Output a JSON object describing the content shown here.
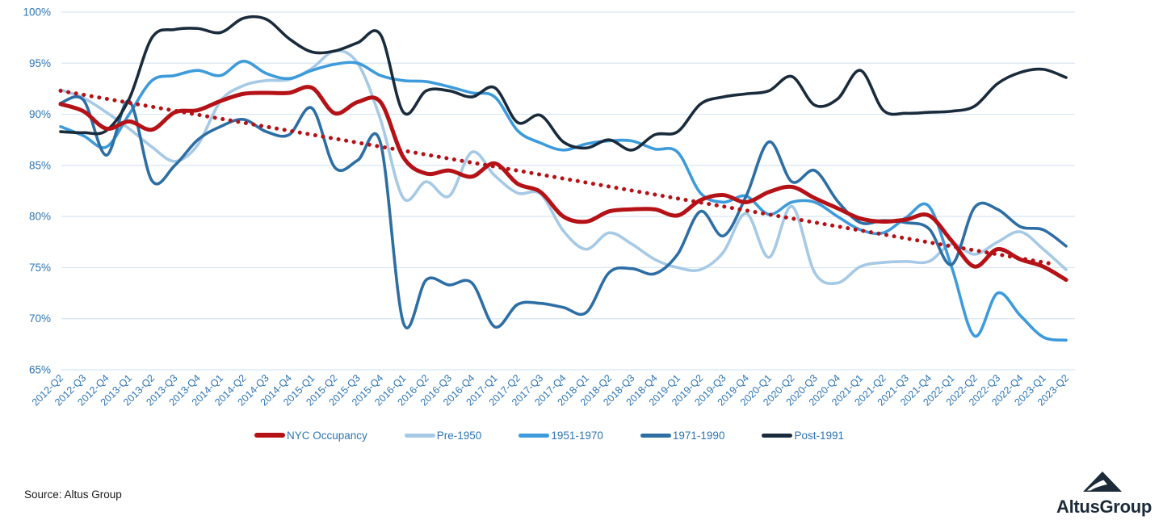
{
  "page": {
    "background": "#ffffff"
  },
  "chart_data": {
    "type": "line",
    "title": "",
    "xlabel": "",
    "ylabel": "",
    "grid": true,
    "legend_position": "bottom",
    "y_axis": {
      "min": 65,
      "max": 100,
      "step": 5,
      "suffix": "%"
    },
    "colors": {
      "axis_text": "#2e75b6",
      "gridline": "#d8e6f3"
    },
    "categories": [
      "2012-Q2",
      "2012-Q3",
      "2012-Q4",
      "2013-Q1",
      "2013-Q2",
      "2013-Q3",
      "2013-Q4",
      "2014-Q1",
      "2014-Q2",
      "2014-Q3",
      "2014-Q4",
      "2015-Q1",
      "2015-Q2",
      "2015-Q3",
      "2015-Q4",
      "2016-Q1",
      "2016-Q2",
      "2016-Q3",
      "2016-Q4",
      "2017-Q1",
      "2017-Q2",
      "2017-Q3",
      "2017-Q4",
      "2018-Q1",
      "2018-Q2",
      "2018-Q3",
      "2018-Q4",
      "2019-Q1",
      "2019-Q2",
      "2019-Q3",
      "2019-Q4",
      "2020-Q1",
      "2020-Q2",
      "2020-Q3",
      "2020-Q4",
      "2021-Q1",
      "2021-Q2",
      "2021-Q3",
      "2021-Q4",
      "2022-Q1",
      "2022-Q2",
      "2022-Q3",
      "2022-Q4",
      "2023-Q1",
      "2023-Q2"
    ],
    "series": [
      {
        "name": "NYC Occupancy",
        "color": "#b51217",
        "width": 5,
        "values": [
          91.0,
          90.3,
          88.6,
          89.3,
          88.5,
          90.2,
          90.4,
          91.3,
          92.0,
          92.1,
          92.1,
          92.6,
          90.1,
          91.2,
          91.2,
          85.8,
          84.2,
          84.5,
          83.9,
          85.2,
          83.2,
          82.4,
          80.0,
          79.5,
          80.5,
          80.7,
          80.7,
          80.1,
          81.6,
          82.1,
          81.4,
          82.4,
          82.9,
          81.8,
          80.8,
          79.8,
          79.5,
          79.7,
          80.1,
          77.6,
          75.1,
          76.8,
          75.8,
          75.1,
          73.8
        ]
      },
      {
        "name": "Pre-1950",
        "color": "#a6c9e6",
        "width": 3.6,
        "values": [
          92.4,
          91.6,
          90.2,
          88.6,
          86.8,
          85.4,
          87.0,
          91.3,
          92.8,
          93.3,
          93.4,
          94.5,
          96.2,
          95.0,
          89.5,
          81.8,
          83.4,
          82.0,
          86.3,
          84.0,
          82.3,
          82.2,
          78.6,
          76.8,
          78.4,
          77.3,
          75.8,
          75.0,
          74.8,
          76.5,
          80.3,
          76.0,
          81.0,
          74.5,
          73.5,
          75.1,
          75.5,
          75.6,
          75.6,
          77.3,
          76.3,
          77.5,
          78.5,
          76.8,
          74.8
        ]
      },
      {
        "name": "1951-1970",
        "color": "#3d9bdc",
        "width": 3.6,
        "values": [
          88.8,
          87.9,
          86.8,
          90.0,
          93.3,
          93.8,
          94.3,
          93.8,
          95.2,
          94.0,
          93.5,
          94.3,
          94.9,
          95.0,
          93.8,
          93.3,
          93.2,
          92.7,
          92.1,
          91.7,
          88.4,
          87.2,
          86.5,
          87.1,
          87.4,
          87.4,
          86.6,
          86.3,
          82.3,
          81.4,
          82.0,
          80.2,
          81.4,
          81.4,
          80.0,
          78.7,
          78.4,
          79.9,
          81.0,
          75.0,
          68.3,
          72.5,
          70.3,
          68.2,
          67.9
        ]
      },
      {
        "name": "1971-1990",
        "color": "#2d6ea5",
        "width": 3.6,
        "values": [
          91.1,
          91.4,
          86.0,
          91.3,
          83.5,
          85.0,
          87.5,
          88.8,
          89.5,
          88.3,
          88.0,
          90.6,
          84.8,
          85.5,
          87.2,
          69.6,
          73.8,
          73.3,
          73.5,
          69.2,
          71.4,
          71.5,
          71.1,
          70.6,
          74.5,
          74.9,
          74.4,
          76.3,
          80.5,
          78.1,
          82.0,
          87.3,
          83.4,
          84.5,
          81.5,
          79.4,
          79.6,
          79.4,
          78.8,
          75.3,
          80.9,
          80.7,
          79.0,
          78.7,
          77.1
        ]
      },
      {
        "name": "Post-1991",
        "color": "#1a2b3c",
        "width": 3.6,
        "values": [
          88.3,
          88.2,
          88.4,
          91.5,
          97.5,
          98.3,
          98.4,
          98.0,
          99.4,
          99.3,
          97.4,
          96.1,
          96.2,
          97.0,
          97.8,
          90.2,
          92.3,
          92.3,
          91.7,
          92.6,
          89.2,
          89.9,
          87.3,
          86.7,
          87.5,
          86.5,
          88.0,
          88.3,
          91.0,
          91.7,
          92.0,
          92.3,
          93.7,
          90.9,
          91.5,
          94.3,
          90.4,
          90.1,
          90.2,
          90.3,
          90.8,
          93.0,
          94.1,
          94.4,
          93.6
        ]
      }
    ],
    "trend": {
      "label": "NYC Occupancy trend",
      "color": "#b51217",
      "style": "dotted",
      "start_index": 0,
      "start_value": 92.3,
      "end_index": 43.3,
      "end_value": 75.4
    }
  },
  "footer": {
    "source": "Source: Altus Group",
    "logo_text": "AltusGroup"
  }
}
